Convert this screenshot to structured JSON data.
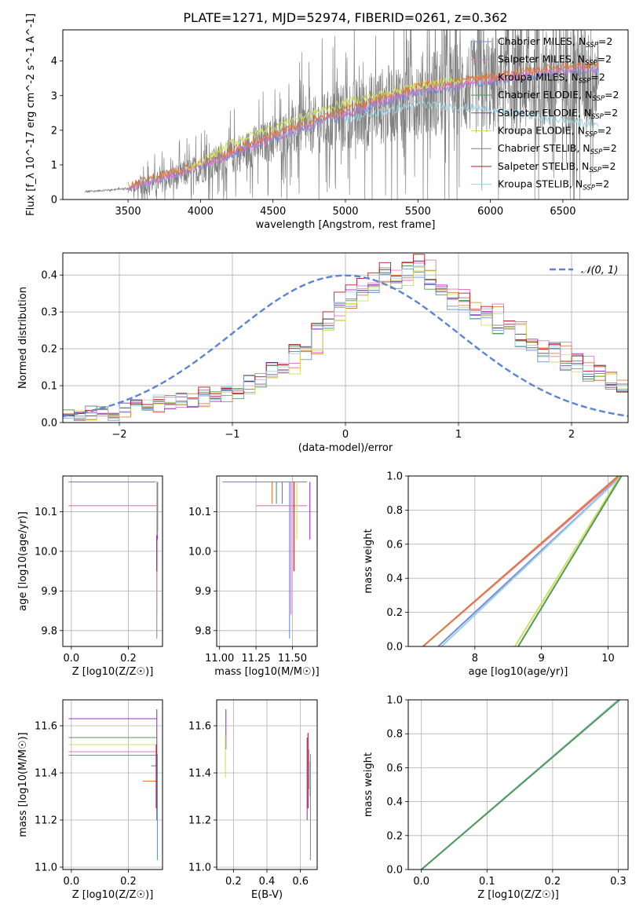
{
  "title": "PLATE=1271, MJD=52974, FIBERID=0261, z=0.362",
  "series_colors": {
    "Chabrier MILES": "#6f8fd9",
    "Salpeter MILES": "#e377c2",
    "Kroupa MILES": "#e07b39",
    "Chabrier ELODIE": "#4f9a59",
    "Salpeter ELODIE": "#9b30c8",
    "Kroupa ELODIE": "#cfe060",
    "Chabrier STELIB": "#7f7f7f",
    "Salpeter STELIB": "#c0141c",
    "Kroupa STELIB": "#9ed0e0"
  },
  "chart_data": [
    {
      "id": "spectrum",
      "type": "line",
      "xlabel": "wavelength [Angstrom, rest frame]",
      "ylabel": "Flux [f_λ 10^-17 erg cm^-2 s^-1 A^-1]",
      "xlim": [
        3050,
        6950
      ],
      "ylim": [
        0,
        4.9
      ],
      "xticks": [
        3500,
        4000,
        4500,
        5000,
        5500,
        6000,
        6500
      ],
      "yticks": [
        0,
        1,
        2,
        3,
        4
      ],
      "grid": false,
      "legend_position": "upper-right",
      "legend": [
        "Chabrier MILES, N_SSP=2",
        "Salpeter MILES, N_SSP=2",
        "Kroupa MILES, N_SSP=2",
        "Chabrier ELODIE, N_SSP=2",
        "Salpeter ELODIE, N_SSP=2",
        "Kroupa ELODIE, N_SSP=2",
        "Chabrier STELIB, N_SSP=2",
        "Salpeter STELIB, N_SSP=2",
        "Kroupa STELIB, N_SSP=2"
      ],
      "data_series": {
        "name": "data",
        "color": "#808080",
        "x_range": [
          3200,
          6750
        ],
        "continuum_x": [
          3200,
          3500,
          3750,
          4000,
          4250,
          4500,
          4750,
          5000,
          5250,
          5500,
          5750,
          6000,
          6250,
          6500,
          6750
        ],
        "continuum_y": [
          0.22,
          0.32,
          0.55,
          0.9,
          1.3,
          1.75,
          2.1,
          2.4,
          2.7,
          3.0,
          3.2,
          3.3,
          3.4,
          3.5,
          3.6
        ],
        "noise_scale_x": [
          3200,
          3500,
          3600,
          4000,
          4500,
          5000,
          5500,
          6000,
          6500,
          6750
        ],
        "noise_scale_y": [
          0.05,
          0.05,
          0.6,
          1.0,
          1.4,
          2.2,
          2.8,
          3.2,
          3.6,
          3.8
        ]
      },
      "model_series": [
        {
          "name": "Chabrier MILES",
          "x": [
            3500,
            4000,
            4500,
            5000,
            5500,
            6000,
            6500,
            6750
          ],
          "y": [
            0.3,
            0.95,
            1.75,
            2.45,
            3.1,
            3.4,
            3.7,
            3.75
          ]
        },
        {
          "name": "Salpeter MILES",
          "x": [
            3500,
            4000,
            4500,
            5000,
            5500,
            6000,
            6500,
            6750
          ],
          "y": [
            0.32,
            0.97,
            1.78,
            2.5,
            3.15,
            3.45,
            3.75,
            3.8
          ]
        },
        {
          "name": "Kroupa MILES",
          "x": [
            3500,
            4000,
            4500,
            5000,
            5500,
            6000,
            6500,
            6750
          ],
          "y": [
            0.42,
            1.05,
            1.9,
            2.6,
            3.3,
            3.55,
            3.85,
            3.9
          ]
        },
        {
          "name": "Kroupa ELODIE",
          "x": [
            3900,
            4200,
            4500,
            5000,
            5500,
            5800
          ],
          "y": [
            0.8,
            1.6,
            2.1,
            2.8,
            3.3,
            3.45
          ]
        },
        {
          "name": "Kroupa STELIB",
          "x": [
            5000,
            5500,
            6000,
            6300,
            6750
          ],
          "y": [
            2.3,
            2.75,
            2.6,
            2.4,
            2.15
          ]
        }
      ]
    },
    {
      "id": "residuals",
      "type": "line",
      "xlabel": "(data-model)/error",
      "ylabel": "Normed distribution",
      "xlim": [
        -2.5,
        2.5
      ],
      "ylim": [
        0,
        0.46
      ],
      "xticks": [
        -2,
        -1,
        0,
        1,
        2
      ],
      "yticks": [
        0.0,
        0.1,
        0.2,
        0.3,
        0.4
      ],
      "grid": true,
      "legend_position": "upper-right",
      "legend": [
        "𝒩(0, 1)"
      ],
      "gaussian": {
        "mean": 0,
        "sigma": 1,
        "color": "#5b84d6"
      },
      "bin_edges": [
        -2.5,
        -2.4,
        -2.3,
        -2.2,
        -2.1,
        -2.0,
        -1.9,
        -1.8,
        -1.7,
        -1.6,
        -1.5,
        -1.4,
        -1.3,
        -1.2,
        -1.1,
        -1.0,
        -0.9,
        -0.8,
        -0.7,
        -0.6,
        -0.5,
        -0.4,
        -0.3,
        -0.2,
        -0.1,
        0.0,
        0.1,
        0.2,
        0.3,
        0.4,
        0.5,
        0.6,
        0.7,
        0.8,
        0.9,
        1.0,
        1.1,
        1.2,
        1.3,
        1.4,
        1.5,
        1.6,
        1.7,
        1.8,
        1.9,
        2.0,
        2.1,
        2.2,
        2.3,
        2.4,
        2.5
      ],
      "base_hist": [
        0.02,
        0.02,
        0.03,
        0.03,
        0.02,
        0.04,
        0.05,
        0.04,
        0.06,
        0.05,
        0.07,
        0.05,
        0.08,
        0.07,
        0.09,
        0.08,
        0.12,
        0.11,
        0.15,
        0.14,
        0.2,
        0.19,
        0.26,
        0.27,
        0.32,
        0.34,
        0.36,
        0.37,
        0.4,
        0.38,
        0.41,
        0.42,
        0.37,
        0.35,
        0.33,
        0.32,
        0.28,
        0.3,
        0.25,
        0.26,
        0.22,
        0.21,
        0.18,
        0.2,
        0.15,
        0.17,
        0.12,
        0.14,
        0.1,
        0.09
      ],
      "series_offsets": [
        {
          "name": "Chabrier MILES",
          "shift": 0.0,
          "scale": 0.97
        },
        {
          "name": "Salpeter MILES",
          "shift": -0.3,
          "scale": 1.05
        },
        {
          "name": "Kroupa MILES",
          "shift": -0.5,
          "scale": 1.0
        },
        {
          "name": "Chabrier ELODIE",
          "shift": 0.1,
          "scale": 1.0
        },
        {
          "name": "Salpeter ELODIE",
          "shift": 0.2,
          "scale": 1.03
        },
        {
          "name": "Kroupa ELODIE",
          "shift": -0.4,
          "scale": 0.98
        },
        {
          "name": "Chabrier STELIB",
          "shift": 0.05,
          "scale": 1.02
        },
        {
          "name": "Salpeter STELIB",
          "shift": 0.15,
          "scale": 1.06
        },
        {
          "name": "Kroupa STELIB",
          "shift": 0.12,
          "scale": 1.0
        }
      ]
    },
    {
      "id": "age_vs_Z",
      "type": "line",
      "xlabel": "Z [log10(Z/Z☉)]",
      "ylabel": "age  [log10(age/yr)]",
      "xlim": [
        -0.03,
        0.32
      ],
      "ylim": [
        9.76,
        10.19
      ],
      "xticks": [
        0.0,
        0.2
      ],
      "yticks": [
        9.8,
        9.9,
        10.0,
        10.1
      ],
      "grid": true,
      "hlines": [
        {
          "series": "Kroupa ELODIE",
          "y": 10.175,
          "x0": -0.01,
          "x1": 0.3
        },
        {
          "series": "Chabrier MILES",
          "y": 10.175,
          "x0": -0.01,
          "x1": 0.295
        },
        {
          "series": "Salpeter MILES",
          "y": 10.115,
          "x0": -0.01,
          "x1": 0.3
        }
      ],
      "vlines": [
        {
          "series": "Chabrier MILES",
          "x": 0.3,
          "y0": 9.78,
          "y1": 10.175
        },
        {
          "series": "Salpeter MILES",
          "x": 0.3,
          "y0": 9.84,
          "y1": 10.175
        },
        {
          "series": "Salpeter STELIB",
          "x": 0.3,
          "y0": 9.95,
          "y1": 10.12
        },
        {
          "series": "Salpeter ELODIE",
          "x": 0.302,
          "y0": 10.03,
          "y1": 10.175
        },
        {
          "series": "Kroupa ELODIE",
          "x": 0.3,
          "y0": 10.04,
          "y1": 10.175
        },
        {
          "series": "Chabrier STELIB",
          "x": 0.303,
          "y0": 10.05,
          "y1": 10.175
        }
      ]
    },
    {
      "id": "age_vs_mass",
      "type": "line",
      "xlabel": "mass [log10(M/M☉)]",
      "ylabel": "",
      "xlim": [
        10.98,
        11.67
      ],
      "ylim": [
        9.76,
        10.19
      ],
      "xticks": [
        11.0,
        11.25,
        11.5
      ],
      "yticks": [
        9.8,
        9.9,
        10.0,
        10.1
      ],
      "grid": true,
      "hlines": [
        {
          "series": "Chabrier MILES",
          "y": 10.175,
          "x0": 11.02,
          "x1": 11.6
        },
        {
          "series": "Salpeter MILES",
          "y": 10.115,
          "x0": 11.25,
          "x1": 11.6
        }
      ],
      "vlines": [
        {
          "series": "Chabrier MILES",
          "x": 11.48,
          "y0": 9.78,
          "y1": 10.175
        },
        {
          "series": "Salpeter MILES",
          "x": 11.49,
          "y0": 9.84,
          "y1": 10.175
        },
        {
          "series": "Salpeter STELIB",
          "x": 11.51,
          "y0": 9.95,
          "y1": 10.175
        },
        {
          "series": "Kroupa MILES",
          "x": 11.36,
          "y0": 10.12,
          "y1": 10.175
        },
        {
          "series": "Chabrier ELODIE",
          "x": 11.39,
          "y0": 10.12,
          "y1": 10.175
        },
        {
          "series": "Kroupa ELODIE",
          "x": 11.53,
          "y0": 10.03,
          "y1": 10.175
        },
        {
          "series": "Salpeter ELODIE",
          "x": 11.62,
          "y0": 10.03,
          "y1": 10.175
        },
        {
          "series": "Chabrier STELIB",
          "x": 11.43,
          "y0": 10.12,
          "y1": 10.175
        }
      ]
    },
    {
      "id": "weight_vs_age",
      "type": "line",
      "xlabel": "age  [log10(age/yr)]",
      "ylabel": "mass weight",
      "xlim": [
        7.0,
        10.3
      ],
      "ylim": [
        0.0,
        1.0
      ],
      "xticks": [
        8,
        9,
        10
      ],
      "yticks": [
        0.0,
        0.2,
        0.4,
        0.6,
        0.8,
        1.0
      ],
      "grid": true,
      "lines": [
        {
          "series": "Salpeter MILES",
          "x": [
            7.22,
            10.18
          ],
          "y": [
            0.0,
            1.0
          ]
        },
        {
          "series": "Kroupa MILES",
          "x": [
            7.22,
            10.15
          ],
          "y": [
            0.0,
            1.0
          ]
        },
        {
          "series": "Chabrier MILES",
          "x": [
            7.45,
            10.2
          ],
          "y": [
            0.0,
            1.0
          ]
        },
        {
          "series": "Kroupa STELIB",
          "x": [
            7.5,
            10.2
          ],
          "y": [
            0.0,
            1.0
          ]
        },
        {
          "series": "Kroupa ELODIE",
          "x": [
            8.6,
            10.18
          ],
          "y": [
            0.0,
            1.0
          ]
        },
        {
          "series": "Chabrier ELODIE",
          "x": [
            8.65,
            10.2
          ],
          "y": [
            0.0,
            1.0
          ]
        }
      ]
    },
    {
      "id": "mass_vs_Z",
      "type": "line",
      "xlabel": "Z [log10(Z/Z☉)]",
      "ylabel": "mass [log10(M/M☉)]",
      "xlim": [
        -0.03,
        0.32
      ],
      "ylim": [
        10.99,
        11.71
      ],
      "xticks": [
        0.0,
        0.2
      ],
      "yticks": [
        11.0,
        11.2,
        11.4,
        11.6
      ],
      "grid": true,
      "hlines": [
        {
          "series": "Salpeter ELODIE",
          "y": 11.63,
          "x0": -0.01,
          "x1": 0.3
        },
        {
          "series": "Chabrier ELODIE",
          "y": 11.55,
          "x0": -0.01,
          "x1": 0.3
        },
        {
          "series": "Kroupa ELODIE",
          "y": 11.52,
          "x0": -0.01,
          "x1": 0.3
        },
        {
          "series": "Salpeter MILES",
          "y": 11.49,
          "x0": -0.01,
          "x1": 0.3
        },
        {
          "series": "Chabrier MILES",
          "y": 11.475,
          "x0": -0.01,
          "x1": 0.3
        },
        {
          "series": "Kroupa MILES",
          "y": 11.365,
          "x0": 0.25,
          "x1": 0.3
        },
        {
          "series": "Chabrier STELIB",
          "y": 11.43,
          "x0": 0.28,
          "x1": 0.3
        }
      ],
      "vlines": [
        {
          "series": "Salpeter ELODIE",
          "x": 0.3,
          "y0": 11.2,
          "y1": 11.67
        },
        {
          "series": "Salpeter STELIB",
          "x": 0.298,
          "y0": 11.25,
          "y1": 11.52
        },
        {
          "series": "Chabrier MILES",
          "x": 0.302,
          "y0": 11.03,
          "y1": 11.48
        }
      ]
    },
    {
      "id": "mass_vs_ebv",
      "type": "line",
      "xlabel": "E(B-V)",
      "ylabel": "",
      "xlim": [
        0.1,
        0.7
      ],
      "ylim": [
        10.99,
        11.71
      ],
      "xticks": [
        0.2,
        0.4,
        0.6
      ],
      "yticks": [
        11.0,
        11.2,
        11.4,
        11.6
      ],
      "grid": true,
      "vlines": [
        {
          "series": "Salpeter ELODIE",
          "x": 0.155,
          "y0": 11.5,
          "y1": 11.67
        },
        {
          "series": "Kroupa ELODIE",
          "x": 0.152,
          "y0": 11.38,
          "y1": 11.56
        },
        {
          "series": "Salpeter ELODIE",
          "x": 0.64,
          "y0": 11.2,
          "y1": 11.55
        },
        {
          "series": "Salpeter STELIB",
          "x": 0.645,
          "y0": 11.25,
          "y1": 11.57
        },
        {
          "series": "Kroupa STELIB",
          "x": 0.655,
          "y0": 11.3,
          "y1": 11.45
        },
        {
          "series": "Chabrier MILES",
          "x": 0.66,
          "y0": 11.03,
          "y1": 11.48
        },
        {
          "series": "Kroupa MILES",
          "x": 0.65,
          "y0": 11.33,
          "y1": 11.5
        }
      ]
    },
    {
      "id": "weight_vs_Z",
      "type": "line",
      "xlabel": "Z [log10(Z/Z☉)]",
      "ylabel": "mass weight",
      "xlim": [
        -0.02,
        0.315
      ],
      "ylim": [
        0.0,
        1.0
      ],
      "xticks": [
        0.0,
        0.1,
        0.2,
        0.3
      ],
      "yticks": [
        0.0,
        0.2,
        0.4,
        0.6,
        0.8,
        1.0
      ],
      "grid": true,
      "lines": [
        {
          "series": "Kroupa STELIB",
          "x": [
            0.0,
            0.3
          ],
          "y": [
            0.0,
            1.0
          ]
        },
        {
          "series": "Chabrier ELODIE",
          "x": [
            0.0,
            0.302
          ],
          "y": [
            0.0,
            1.0
          ]
        }
      ]
    }
  ]
}
